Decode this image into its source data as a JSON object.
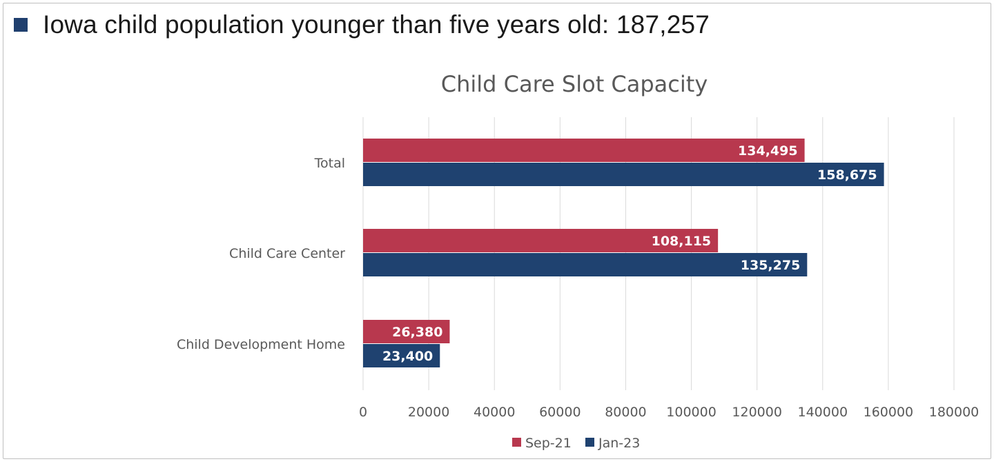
{
  "headline": {
    "text": "Iowa child population younger than five years old: 187,257",
    "bullet_color": "#1f3f6e"
  },
  "chart_data": {
    "type": "bar",
    "orientation": "horizontal",
    "title": "Child Care Slot Capacity",
    "xlabel": "",
    "ylabel": "",
    "categories": [
      "Total",
      "Child Care Center",
      "Child Development Home"
    ],
    "series": [
      {
        "name": "Sep-21",
        "color": "#b8384e",
        "values": [
          134495,
          108115,
          26380
        ],
        "labels": [
          "134,495",
          "108,115",
          "26,380"
        ]
      },
      {
        "name": "Jan-23",
        "color": "#1f4270",
        "values": [
          158675,
          135275,
          23400
        ],
        "labels": [
          "158,675",
          "135,275",
          "23,400"
        ]
      }
    ],
    "xlim": [
      0,
      180000
    ],
    "xticks": [
      0,
      20000,
      40000,
      60000,
      80000,
      100000,
      120000,
      140000,
      160000,
      180000
    ],
    "grid": true,
    "legend_position": "bottom"
  }
}
